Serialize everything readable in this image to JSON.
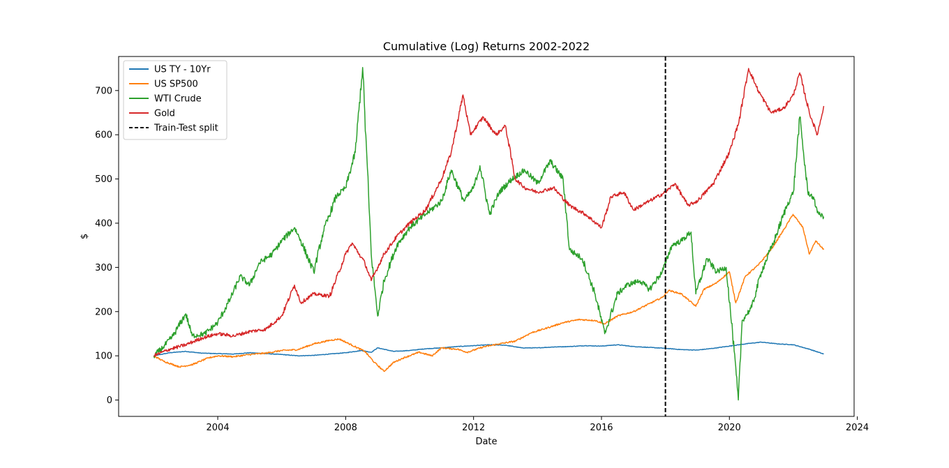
{
  "chart_data": {
    "type": "line",
    "title": "Cumulative (Log) Returns 2002-2022",
    "xlabel": "Date",
    "ylabel": "$",
    "xlim": [
      2000.9,
      2023.9
    ],
    "ylim": [
      -37,
      777
    ],
    "x_ticks": [
      {
        "value": 2004,
        "label": "2004"
      },
      {
        "value": 2008,
        "label": "2008"
      },
      {
        "value": 2012,
        "label": "2012"
      },
      {
        "value": 2016,
        "label": "2016"
      },
      {
        "value": 2020,
        "label": "2020"
      },
      {
        "value": 2024,
        "label": "2024"
      }
    ],
    "y_ticks": [
      {
        "value": 0,
        "label": "0"
      },
      {
        "value": 100,
        "label": "100"
      },
      {
        "value": 200,
        "label": "200"
      },
      {
        "value": 300,
        "label": "300"
      },
      {
        "value": 400,
        "label": "400"
      },
      {
        "value": 500,
        "label": "500"
      },
      {
        "value": 600,
        "label": "600"
      },
      {
        "value": 700,
        "label": "700"
      }
    ],
    "grid": false,
    "legend_position": "upper-left",
    "split": {
      "name": "Train-Test split",
      "x": 2018.0,
      "color": "#000000",
      "style": "dashed"
    },
    "series": [
      {
        "name": "US TY - 10Yr",
        "color": "#1f77b4",
        "x": [
          2002.0,
          2002.5,
          2003.0,
          2003.5,
          2004.0,
          2004.5,
          2005.0,
          2005.5,
          2006.0,
          2006.5,
          2007.0,
          2007.5,
          2008.0,
          2008.5,
          2008.8,
          2009.0,
          2009.5,
          2010.0,
          2010.5,
          2011.0,
          2011.5,
          2012.0,
          2012.5,
          2013.0,
          2013.5,
          2014.0,
          2014.5,
          2015.0,
          2015.5,
          2016.0,
          2016.5,
          2017.0,
          2017.5,
          2018.0,
          2018.5,
          2019.0,
          2019.5,
          2020.0,
          2020.5,
          2021.0,
          2021.5,
          2022.0,
          2022.5,
          2022.95
        ],
        "y": [
          100,
          107,
          110,
          106,
          105,
          104,
          107,
          105,
          103,
          100,
          101,
          104,
          107,
          112,
          108,
          118,
          110,
          112,
          116,
          118,
          121,
          123,
          125,
          124,
          118,
          118,
          120,
          121,
          123,
          122,
          125,
          121,
          119,
          117,
          114,
          113,
          117,
          122,
          127,
          131,
          127,
          125,
          115,
          104
        ]
      },
      {
        "name": "US SP500",
        "color": "#ff7f0e",
        "x": [
          2002.0,
          2002.3,
          2002.8,
          2003.2,
          2003.7,
          2004.0,
          2004.5,
          2005.0,
          2005.5,
          2006.0,
          2006.5,
          2007.0,
          2007.5,
          2007.8,
          2008.2,
          2008.6,
          2008.9,
          2009.2,
          2009.5,
          2009.8,
          2010.3,
          2010.7,
          2011.0,
          2011.5,
          2011.8,
          2012.3,
          2012.8,
          2013.3,
          2013.8,
          2014.3,
          2014.8,
          2015.3,
          2015.8,
          2016.1,
          2016.5,
          2017.0,
          2017.5,
          2017.9,
          2018.1,
          2018.5,
          2018.95,
          2019.2,
          2019.6,
          2020.0,
          2020.2,
          2020.5,
          2020.9,
          2021.3,
          2021.7,
          2021.99,
          2022.3,
          2022.5,
          2022.7,
          2022.95
        ],
        "y": [
          100,
          88,
          75,
          80,
          95,
          100,
          98,
          103,
          106,
          112,
          114,
          127,
          135,
          138,
          124,
          110,
          85,
          65,
          85,
          95,
          108,
          100,
          118,
          115,
          108,
          120,
          127,
          133,
          152,
          163,
          175,
          182,
          180,
          172,
          190,
          200,
          218,
          232,
          248,
          240,
          212,
          250,
          265,
          290,
          220,
          280,
          305,
          340,
          385,
          420,
          390,
          330,
          360,
          340
        ]
      },
      {
        "name": "WTI Crude",
        "color": "#2ca02c",
        "x": [
          2002.0,
          2002.3,
          2002.6,
          2003.0,
          2003.2,
          2003.6,
          2004.0,
          2004.4,
          2004.7,
          2005.0,
          2005.3,
          2005.7,
          2006.0,
          2006.4,
          2006.6,
          2007.0,
          2007.3,
          2007.7,
          2008.0,
          2008.3,
          2008.53,
          2008.8,
          2009.0,
          2009.2,
          2009.6,
          2010.0,
          2010.5,
          2011.0,
          2011.3,
          2011.7,
          2012.0,
          2012.2,
          2012.5,
          2012.8,
          2013.2,
          2013.6,
          2014.0,
          2014.4,
          2014.8,
          2015.0,
          2015.4,
          2015.8,
          2016.1,
          2016.5,
          2016.8,
          2017.2,
          2017.5,
          2017.9,
          2018.2,
          2018.5,
          2018.8,
          2018.95,
          2019.3,
          2019.6,
          2019.9,
          2020.1,
          2020.28,
          2020.4,
          2020.7,
          2021.0,
          2021.4,
          2021.8,
          2022.0,
          2022.2,
          2022.45,
          2022.6,
          2022.8,
          2022.95
        ],
        "y": [
          100,
          120,
          145,
          195,
          145,
          150,
          175,
          230,
          280,
          260,
          310,
          330,
          360,
          390,
          360,
          290,
          380,
          460,
          480,
          560,
          752,
          330,
          190,
          270,
          350,
          390,
          420,
          450,
          520,
          450,
          480,
          530,
          420,
          470,
          500,
          520,
          490,
          540,
          500,
          340,
          320,
          240,
          150,
          240,
          260,
          270,
          250,
          290,
          350,
          360,
          380,
          240,
          320,
          290,
          300,
          150,
          0,
          180,
          210,
          290,
          360,
          440,
          470,
          640,
          470,
          460,
          420,
          415
        ]
      },
      {
        "name": "Gold",
        "color": "#d62728",
        "x": [
          2002.0,
          2002.5,
          2003.0,
          2003.5,
          2004.0,
          2004.5,
          2005.0,
          2005.5,
          2006.0,
          2006.4,
          2006.6,
          2007.0,
          2007.5,
          2008.0,
          2008.2,
          2008.6,
          2008.8,
          2009.2,
          2009.6,
          2010.0,
          2010.5,
          2011.0,
          2011.3,
          2011.67,
          2011.9,
          2012.3,
          2012.7,
          2013.0,
          2013.3,
          2013.6,
          2014.0,
          2014.5,
          2015.0,
          2015.5,
          2016.0,
          2016.3,
          2016.7,
          2017.0,
          2017.5,
          2018.0,
          2018.3,
          2018.7,
          2019.0,
          2019.5,
          2020.0,
          2020.3,
          2020.6,
          2020.9,
          2021.3,
          2021.7,
          2022.0,
          2022.2,
          2022.5,
          2022.75,
          2022.95
        ],
        "y": [
          100,
          115,
          125,
          140,
          150,
          145,
          155,
          160,
          190,
          260,
          220,
          240,
          235,
          330,
          355,
          310,
          270,
          330,
          370,
          400,
          430,
          500,
          560,
          690,
          600,
          640,
          600,
          620,
          500,
          480,
          470,
          480,
          440,
          420,
          390,
          460,
          470,
          430,
          450,
          470,
          490,
          440,
          450,
          490,
          560,
          630,
          750,
          700,
          650,
          660,
          690,
          740,
          650,
          600,
          665
        ]
      }
    ]
  }
}
